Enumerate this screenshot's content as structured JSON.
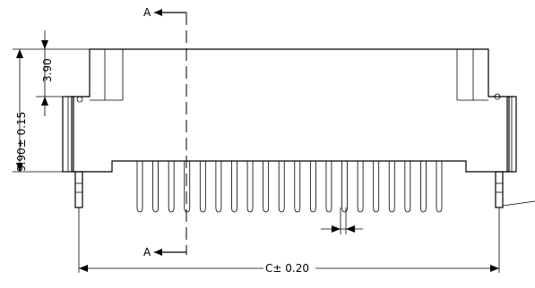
{
  "drawing": {
    "section_top_label": "A",
    "section_bottom_label": "A",
    "dim_height_total": "9.90± 0.15",
    "dim_height_top": "3.90",
    "dim_pitch_width": "0.45",
    "dim_overall_length": "C± 0.20",
    "pin_count": 20
  },
  "colors": {
    "line": "#000000",
    "background": "#ffffff"
  }
}
